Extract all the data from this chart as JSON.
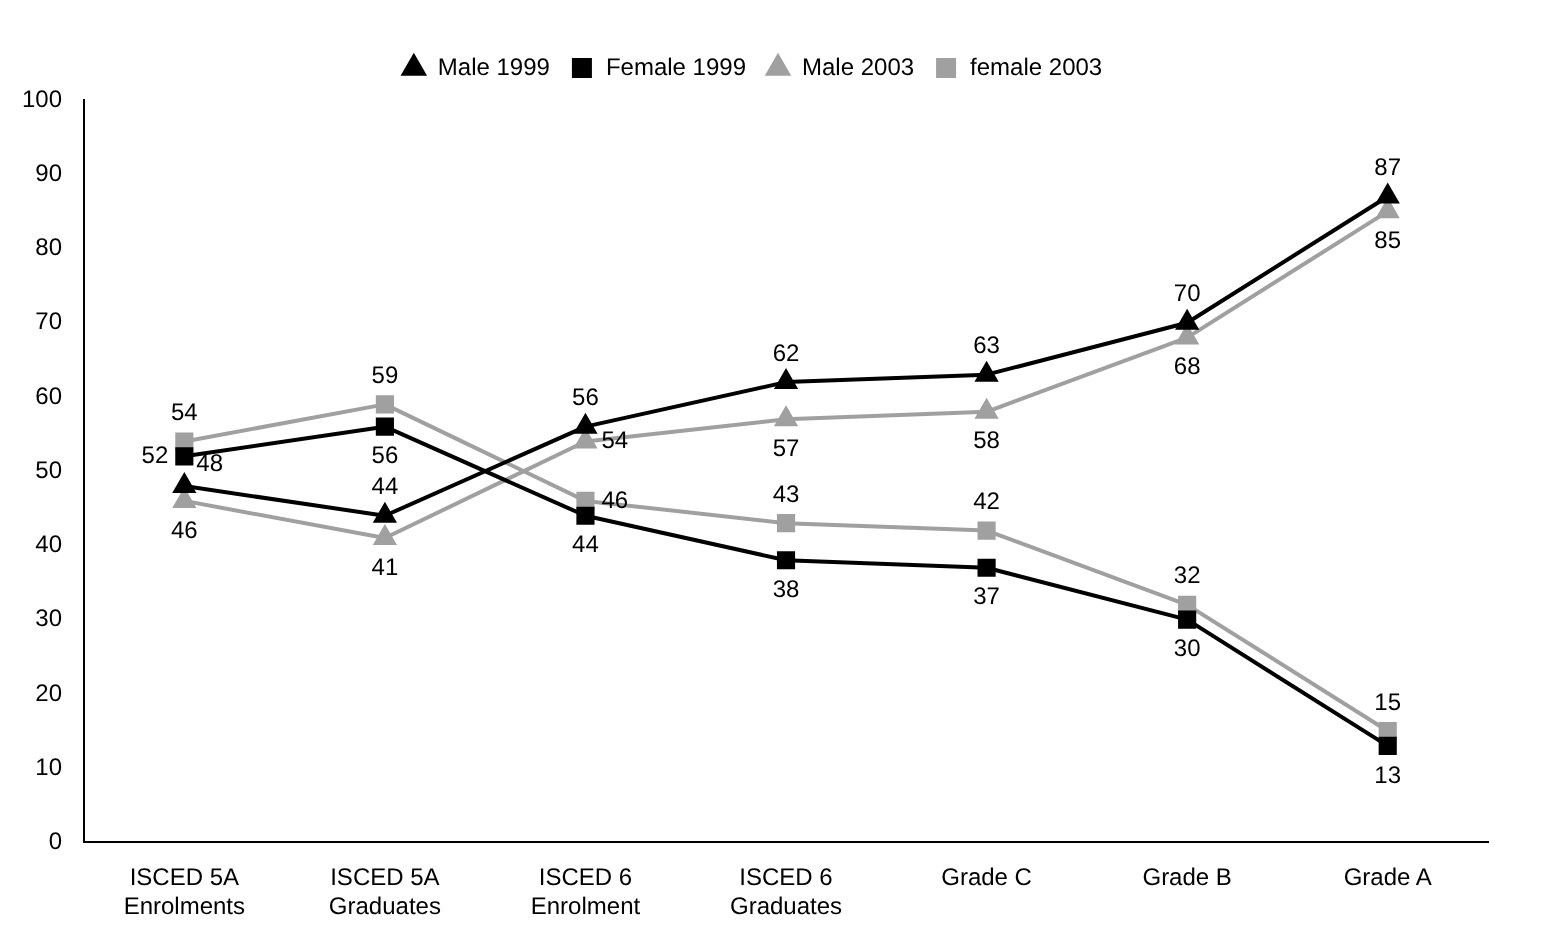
{
  "chart_data": {
    "type": "line",
    "categories": [
      "ISCED 5A\nEnrolments",
      "ISCED 5A\nGraduates",
      "ISCED 6\nEnrolment",
      "ISCED 6\nGraduates",
      "Grade C",
      "Grade B",
      "Grade A"
    ],
    "series": [
      {
        "name": "Male 1999",
        "color": "#000000",
        "marker": "triangle",
        "values": [
          48,
          44,
          56,
          62,
          63,
          70,
          87
        ]
      },
      {
        "name": "Female 1999",
        "color": "#000000",
        "marker": "square",
        "values": [
          52,
          56,
          44,
          38,
          37,
          30,
          13
        ]
      },
      {
        "name": "Male 2003",
        "color": "#a0a0a0",
        "marker": "triangle",
        "values": [
          46,
          41,
          54,
          57,
          58,
          68,
          85
        ]
      },
      {
        "name": "female 2003",
        "color": "#a0a0a0",
        "marker": "square",
        "values": [
          54,
          59,
          46,
          43,
          42,
          32,
          15
        ]
      }
    ],
    "ylim": [
      0,
      100
    ],
    "yticks": [
      0,
      10,
      20,
      30,
      40,
      50,
      60,
      70,
      80,
      90,
      100
    ],
    "grid": false,
    "legend": "top",
    "data_labels": true,
    "line_style": "solid"
  }
}
